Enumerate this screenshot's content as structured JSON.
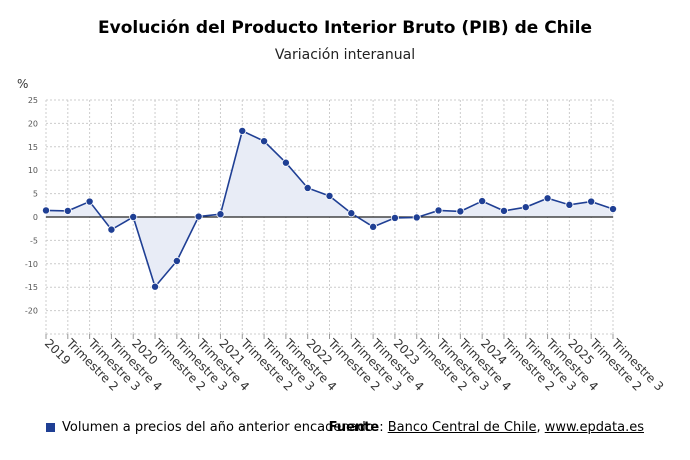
{
  "header": {
    "title": "Evolución del Producto Interior Bruto (PIB) de Chile",
    "subtitle": "Variación interanual"
  },
  "chart_data": {
    "type": "line",
    "unit_label": "%",
    "x": [
      "2019",
      "Trimestre 2",
      "Trimestre 3",
      "Trimestre 4",
      "2020",
      "Trimestre 2",
      "Trimestre 3",
      "Trimestre 4",
      "2021",
      "Trimestre 2",
      "Trimestre 3",
      "Trimestre 4",
      "2022",
      "Trimestre 2",
      "Trimestre 3",
      "Trimestre 4",
      "2023",
      "Trimestre 2",
      "Trimestre 3",
      "Trimestre 4",
      "2024",
      "Trimestre 2",
      "Trimestre 3",
      "Trimestre 4",
      "2025",
      "Trimestre 2",
      "Trimestre 3"
    ],
    "series": [
      {
        "name": "Volumen a precios del año anterior encadenado",
        "values": [
          1.4,
          1.3,
          3.3,
          -2.7,
          0.0,
          -14.9,
          -9.4,
          0.1,
          0.6,
          18.4,
          16.2,
          11.6,
          6.2,
          4.5,
          0.8,
          -2.1,
          -0.2,
          -0.1,
          1.4,
          1.2,
          3.4,
          1.3,
          2.1,
          4.0,
          2.6,
          3.3,
          1.7
        ],
        "color": "#1f3f94"
      }
    ],
    "yticks": [
      25,
      20,
      15,
      10,
      5,
      0,
      -5,
      -10,
      -15,
      -20
    ],
    "ylim": [
      -25,
      25
    ],
    "grid": true,
    "area_fill": "#e8ecf6",
    "legend_position": "bottom-left"
  },
  "footer": {
    "legend_label": "Volumen a precios del año anterior encadenado",
    "source_label": "Fuente",
    "source_sep": ": ",
    "source_org": "Banco Central de Chile",
    "source_comma": ", ",
    "source_site": "www.epdata.es"
  }
}
